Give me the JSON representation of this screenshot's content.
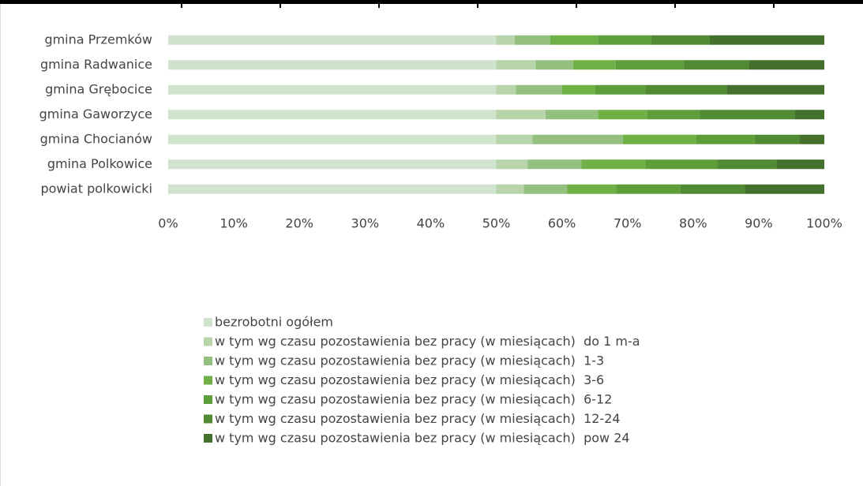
{
  "chart_data": {
    "type": "stacked_bar_horizontal_100",
    "categories": [
      "gmina Przemków",
      "gmina Radwanice",
      "gmina Grębocice",
      "gmina Gaworzyce",
      "gmina Chocianów",
      "gmina Polkowice",
      "powiat polkowicki"
    ],
    "series": [
      {
        "name": "bezrobotni ogółem",
        "color": "#d0e3cc",
        "values": [
          50,
          50,
          50,
          50,
          50,
          50,
          50
        ]
      },
      {
        "name": "w tym wg czasu pozostawienia bez pracy (w miesiącach)  do 1 m-a",
        "color": "#b7d4aa",
        "values": [
          2.8,
          6,
          3,
          7.5,
          5.5,
          4.8,
          4.2
        ]
      },
      {
        "name": "w tym wg czasu pozostawienia bez pracy (w miesiącach)  1-3",
        "color": "#94c07f",
        "values": [
          5.4,
          5.7,
          7,
          8,
          13.8,
          8.2,
          6.6
        ]
      },
      {
        "name": "w tym wg czasu pozostawienia bez pracy (w miesiącach)  3-6",
        "color": "#6fb146",
        "values": [
          7.3,
          6.5,
          5.1,
          7.5,
          11.2,
          9.7,
          7.5
        ]
      },
      {
        "name": "w tym wg czasu pozostawienia bez pracy (w miesiącach)  6-12",
        "color": "#5d9e3b",
        "values": [
          8.1,
          10.4,
          7.6,
          8,
          8.9,
          11,
          9.7
        ]
      },
      {
        "name": "w tym wg czasu pozostawienia bez pracy (w miesiącach)  12-24",
        "color": "#508a33",
        "values": [
          8.9,
          9.9,
          12.4,
          14.5,
          6.8,
          9,
          9.9
        ]
      },
      {
        "name": "w tym wg czasu pozostawienia bez pracy (w miesiącach)  pow 24",
        "color": "#43702b",
        "values": [
          17.5,
          11.5,
          14.9,
          4.5,
          3.8,
          7.3,
          12.1
        ]
      }
    ],
    "xlim": [
      0,
      100
    ],
    "xticks": [
      {
        "value": 0,
        "label": "0%"
      },
      {
        "value": 10,
        "label": "10%"
      },
      {
        "value": 20,
        "label": "20%"
      },
      {
        "value": 30,
        "label": "30%"
      },
      {
        "value": 40,
        "label": "40%"
      },
      {
        "value": 50,
        "label": "50%"
      },
      {
        "value": 60,
        "label": "60%"
      },
      {
        "value": 70,
        "label": "70%"
      },
      {
        "value": 80,
        "label": "80%"
      },
      {
        "value": 90,
        "label": "90%"
      },
      {
        "value": 100,
        "label": "100%"
      }
    ],
    "legend": "bottom"
  }
}
